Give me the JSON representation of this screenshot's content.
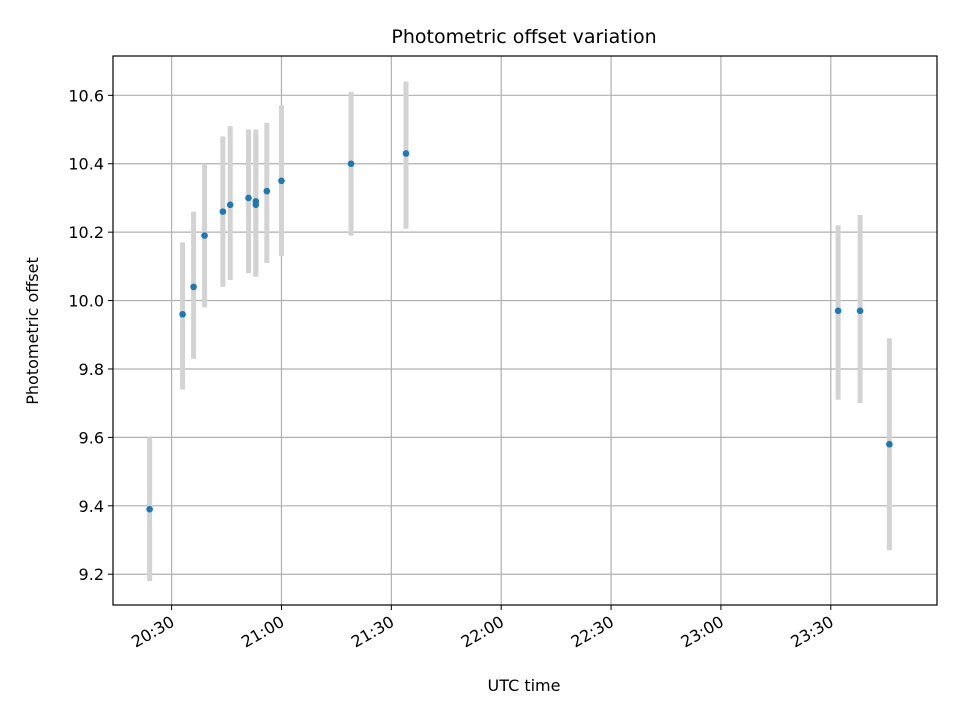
{
  "chart_data": {
    "type": "scatter",
    "title": "Photometric offset variation",
    "xlabel": "UTC time",
    "ylabel": "Photometric offset",
    "x_ticks": [
      "20:30",
      "21:00",
      "21:30",
      "22:00",
      "22:30",
      "23:00",
      "23:30"
    ],
    "y_ticks": [
      "9.2",
      "9.4",
      "9.6",
      "9.8",
      "10.0",
      "10.2",
      "10.4",
      "10.6"
    ],
    "xlim": [
      "20:14",
      "23:59"
    ],
    "ylim": [
      9.11,
      10.715
    ],
    "grid": true,
    "marker_color": "#1f77b4",
    "errorbar_color": "#d3d3d3",
    "series": [
      {
        "points": [
          {
            "x": "20:24",
            "y": 9.39,
            "low": 9.18,
            "high": 9.6
          },
          {
            "x": "20:33",
            "y": 9.96,
            "low": 9.74,
            "high": 10.17
          },
          {
            "x": "20:36",
            "y": 10.04,
            "low": 9.83,
            "high": 10.26
          },
          {
            "x": "20:39",
            "y": 10.19,
            "low": 9.98,
            "high": 10.4
          },
          {
            "x": "20:44",
            "y": 10.26,
            "low": 10.04,
            "high": 10.48
          },
          {
            "x": "20:46",
            "y": 10.28,
            "low": 10.06,
            "high": 10.51
          },
          {
            "x": "20:51",
            "y": 10.3,
            "low": 10.08,
            "high": 10.5
          },
          {
            "x": "20:53",
            "y": 10.29,
            "low": 10.07,
            "high": 10.5
          },
          {
            "x": "20:53",
            "y": 10.28,
            "low": 10.07,
            "high": 10.49
          },
          {
            "x": "20:56",
            "y": 10.32,
            "low": 10.11,
            "high": 10.52
          },
          {
            "x": "21:00",
            "y": 10.35,
            "low": 10.13,
            "high": 10.57
          },
          {
            "x": "21:19",
            "y": 10.4,
            "low": 10.19,
            "high": 10.61
          },
          {
            "x": "21:34",
            "y": 10.43,
            "low": 10.21,
            "high": 10.64
          },
          {
            "x": "23:32",
            "y": 9.97,
            "low": 9.71,
            "high": 10.22
          },
          {
            "x": "23:38",
            "y": 9.97,
            "low": 9.7,
            "high": 10.25
          },
          {
            "x": "23:46",
            "y": 9.58,
            "low": 9.27,
            "high": 9.89
          }
        ]
      }
    ]
  }
}
